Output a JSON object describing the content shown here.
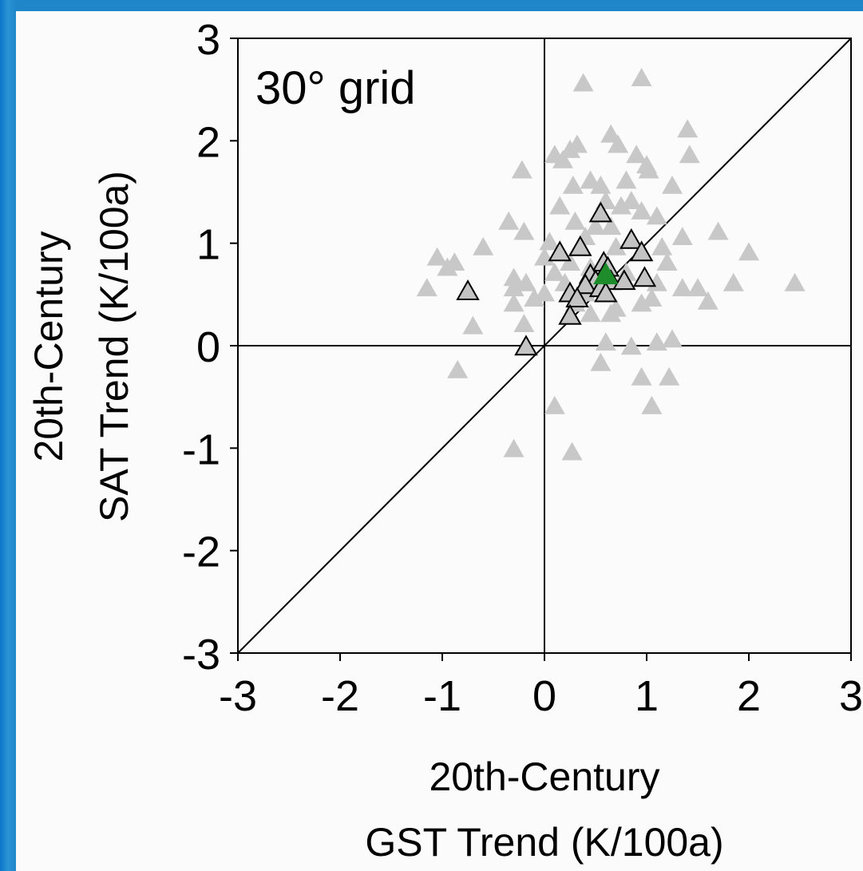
{
  "chart_data": {
    "type": "scatter",
    "annotation": "30° grid",
    "xlabel_lines": [
      "20th-Century",
      "GST Trend (K/100a)"
    ],
    "ylabel_lines": [
      "20th-Century",
      "SAT Trend (K/100a)"
    ],
    "xlim": [
      -3,
      3
    ],
    "ylim": [
      -3,
      3
    ],
    "x_ticks": [
      "-3",
      "-2",
      "-1",
      "0",
      "1",
      "2",
      "3"
    ],
    "y_ticks": [
      "3",
      "2",
      "1",
      "0",
      "-1",
      "-2",
      "-3"
    ],
    "reference_lines": [
      "x = 0",
      "y = 0",
      "y = x"
    ],
    "colors": {
      "background_point": "#c8c8c8",
      "outlined_point": "#c4c4c4",
      "mean_point": "#1e8c2a",
      "frame": "#1f86c9",
      "axes": "#000000"
    },
    "series": [
      {
        "style": "filled-light-gray-triangles",
        "points": [
          [
            0.38,
            2.55
          ],
          [
            0.95,
            2.6
          ],
          [
            0.65,
            2.05
          ],
          [
            0.72,
            1.95
          ],
          [
            0.9,
            1.85
          ],
          [
            1.4,
            2.1
          ],
          [
            1.42,
            1.85
          ],
          [
            0.1,
            1.85
          ],
          [
            0.25,
            1.9
          ],
          [
            0.32,
            1.95
          ],
          [
            0.18,
            1.8
          ],
          [
            1.0,
            1.75
          ],
          [
            1.02,
            1.7
          ],
          [
            -0.22,
            1.7
          ],
          [
            0.28,
            1.55
          ],
          [
            0.45,
            1.6
          ],
          [
            0.55,
            1.55
          ],
          [
            0.8,
            1.6
          ],
          [
            1.25,
            1.55
          ],
          [
            0.6,
            1.4
          ],
          [
            0.75,
            1.35
          ],
          [
            0.85,
            1.4
          ],
          [
            0.95,
            1.3
          ],
          [
            1.1,
            1.25
          ],
          [
            0.15,
            1.35
          ],
          [
            -0.35,
            1.2
          ],
          [
            -0.2,
            1.1
          ],
          [
            0.3,
            1.2
          ],
          [
            0.5,
            1.15
          ],
          [
            0.65,
            1.15
          ],
          [
            1.7,
            1.1
          ],
          [
            1.35,
            1.05
          ],
          [
            -0.6,
            0.95
          ],
          [
            0.05,
            1.0
          ],
          [
            0.4,
            1.05
          ],
          [
            0.7,
            0.95
          ],
          [
            1.15,
            0.95
          ],
          [
            2.0,
            0.9
          ],
          [
            -1.05,
            0.85
          ],
          [
            -0.88,
            0.8
          ],
          [
            -0.95,
            0.75
          ],
          [
            0.0,
            0.85
          ],
          [
            0.25,
            0.8
          ],
          [
            1.2,
            0.8
          ],
          [
            -0.3,
            0.65
          ],
          [
            -0.18,
            0.6
          ],
          [
            0.1,
            0.7
          ],
          [
            0.45,
            0.75
          ],
          [
            0.8,
            0.7
          ],
          [
            1.1,
            0.6
          ],
          [
            1.5,
            0.55
          ],
          [
            1.85,
            0.6
          ],
          [
            2.45,
            0.6
          ],
          [
            -1.15,
            0.55
          ],
          [
            -0.3,
            0.55
          ],
          [
            0.0,
            0.5
          ],
          [
            0.2,
            0.6
          ],
          [
            0.4,
            0.5
          ],
          [
            1.05,
            0.45
          ],
          [
            1.35,
            0.55
          ],
          [
            -0.1,
            0.45
          ],
          [
            0.3,
            0.4
          ],
          [
            0.7,
            0.35
          ],
          [
            0.95,
            0.4
          ],
          [
            1.6,
            0.42
          ],
          [
            -0.3,
            0.4
          ],
          [
            0.45,
            0.3
          ],
          [
            0.65,
            0.3
          ],
          [
            -0.7,
            0.18
          ],
          [
            -0.2,
            0.2
          ],
          [
            0.6,
            0.02
          ],
          [
            0.85,
            -0.02
          ],
          [
            1.1,
            0.02
          ],
          [
            1.25,
            0.05
          ],
          [
            0.55,
            -0.18
          ],
          [
            -0.85,
            -0.25
          ],
          [
            0.95,
            -0.32
          ],
          [
            1.22,
            -0.32
          ],
          [
            1.05,
            -0.6
          ],
          [
            0.1,
            -0.6
          ],
          [
            -0.3,
            -1.02
          ],
          [
            0.27,
            -1.05
          ]
        ]
      },
      {
        "style": "outlined-gray-triangles",
        "points": [
          [
            0.55,
            1.28
          ],
          [
            0.85,
            1.02
          ],
          [
            0.35,
            0.95
          ],
          [
            0.15,
            0.9
          ],
          [
            0.95,
            0.9
          ],
          [
            0.58,
            0.8
          ],
          [
            0.62,
            0.75
          ],
          [
            -0.75,
            0.52
          ],
          [
            0.45,
            0.68
          ],
          [
            0.98,
            0.65
          ],
          [
            0.5,
            0.62
          ],
          [
            0.65,
            0.62
          ],
          [
            0.78,
            0.62
          ],
          [
            0.4,
            0.58
          ],
          [
            0.55,
            0.55
          ],
          [
            0.25,
            0.5
          ],
          [
            0.32,
            0.45
          ],
          [
            0.6,
            0.5
          ],
          [
            0.25,
            0.28
          ],
          [
            -0.18,
            -0.02
          ]
        ]
      },
      {
        "style": "filled-green-triangle",
        "points": [
          [
            0.6,
            0.68
          ]
        ]
      }
    ]
  }
}
